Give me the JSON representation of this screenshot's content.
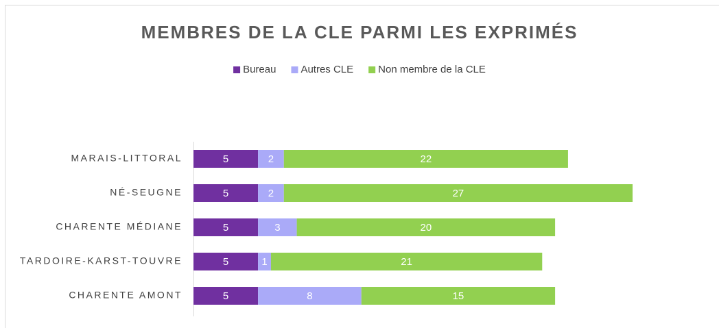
{
  "chart_data": {
    "type": "stacked_bar_horizontal",
    "title": "MEMBRES DE LA CLE PARMI LES EXPRIMÉS",
    "categories": [
      "MARAIS-LITTORAL",
      "NÉ-SEUGNE",
      "CHARENTE MÉDIANE",
      "TARDOIRE-KARST-TOUVRE",
      "CHARENTE AMONT"
    ],
    "series": [
      {
        "name": "Bureau",
        "color": "#7030a0",
        "values": [
          5,
          5,
          5,
          5,
          5
        ]
      },
      {
        "name": "Autres CLE",
        "color": "#aaaaf8",
        "values": [
          2,
          2,
          3,
          1,
          8
        ]
      },
      {
        "name": "Non membre de la CLE",
        "color": "#92d050",
        "values": [
          22,
          27,
          20,
          21,
          15
        ]
      }
    ],
    "xlim": [
      0,
      40
    ],
    "legend": "top"
  }
}
